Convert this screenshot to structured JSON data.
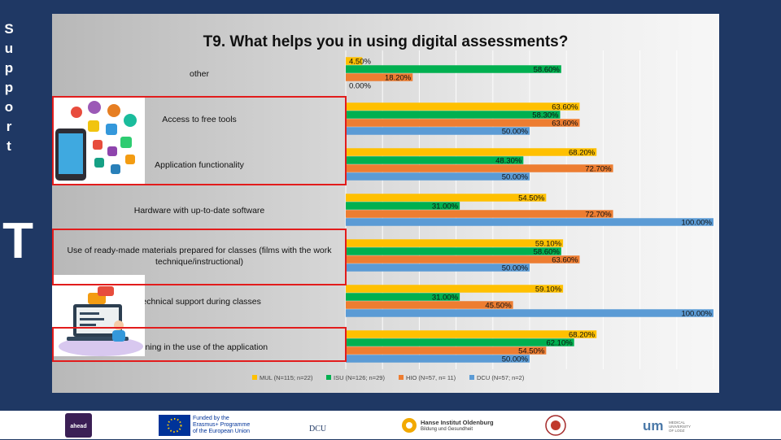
{
  "sidebar": {
    "letters": [
      "S",
      "u",
      "p",
      "p",
      "o",
      "r",
      "t"
    ],
    "big_letter": "T"
  },
  "chart_data": {
    "type": "bar",
    "orientation": "horizontal",
    "title": "T9. What helps you in using digital assessments?",
    "categories": [
      "other",
      "Access to free tools",
      "Application functionality",
      "Hardware with up-to-date software",
      "Use of ready-made materials prepared for classes (films with the work technique/instructional)",
      "Technical support during classes",
      "Training in the use of the application"
    ],
    "category_lines": [
      [
        "other"
      ],
      [
        "Access to free tools"
      ],
      [
        "Application functionality"
      ],
      [
        "Hardware with up-to-date software"
      ],
      [
        "Use of ready-made materials prepared for classes (films with the work",
        "technique/instructional)"
      ],
      [
        "Technical support during classes"
      ],
      [
        "Training in the use of the application"
      ]
    ],
    "series": [
      {
        "name": "MUL (N=115; n=22)",
        "color": "#ffc000",
        "values": [
          4.5,
          63.6,
          68.2,
          54.5,
          59.1,
          59.1,
          68.2
        ],
        "labels": [
          "4.50%",
          "63.60%",
          "68.20%",
          "54.50%",
          "59.10%",
          "59.10%",
          "68.20%"
        ]
      },
      {
        "name": "ISU (N=126; n=29)",
        "color": "#00b050",
        "values": [
          58.6,
          58.3,
          48.3,
          31.0,
          58.6,
          31.0,
          62.1
        ],
        "labels": [
          "58.60%",
          "58.30%",
          "48.30%",
          "31.00%",
          "58.60%",
          "31.00%",
          "62.10%"
        ]
      },
      {
        "name": "HIO (N=57, n= 11)",
        "color": "#ed7d31",
        "values": [
          18.2,
          63.6,
          72.7,
          72.7,
          63.6,
          45.5,
          54.5
        ],
        "labels": [
          "18.20%",
          "63.60%",
          "72.70%",
          "72.70%",
          "63.60%",
          "45.50%",
          "54.50%"
        ]
      },
      {
        "name": "DCU (N=57; n=2)",
        "color": "#5b9bd5",
        "values": [
          0.0,
          50.0,
          50.0,
          100.0,
          50.0,
          100.0,
          50.0
        ],
        "labels": [
          "0.00%",
          "50.00%",
          "50.00%",
          "100.00%",
          "50.00%",
          "100.00%",
          "50.00%"
        ]
      }
    ],
    "xlim": [
      0,
      100
    ],
    "grid": true,
    "legend": "bottom"
  },
  "footer": {
    "ahead_text": "ahead",
    "eu_text": [
      "Funded by the",
      "Erasmus+ Programme",
      "of the European Union"
    ],
    "dcu_text": "DCU",
    "hanse_text": [
      "Hanse Institut Oldenburg",
      "Bildung und Gesundheit"
    ],
    "um_text": "um",
    "um_sub": [
      "MEDICAL",
      "UNIVERSITY",
      "OF LODZ"
    ]
  },
  "colors": {
    "background": "#1f3864",
    "highlight": "#e21c1c"
  }
}
